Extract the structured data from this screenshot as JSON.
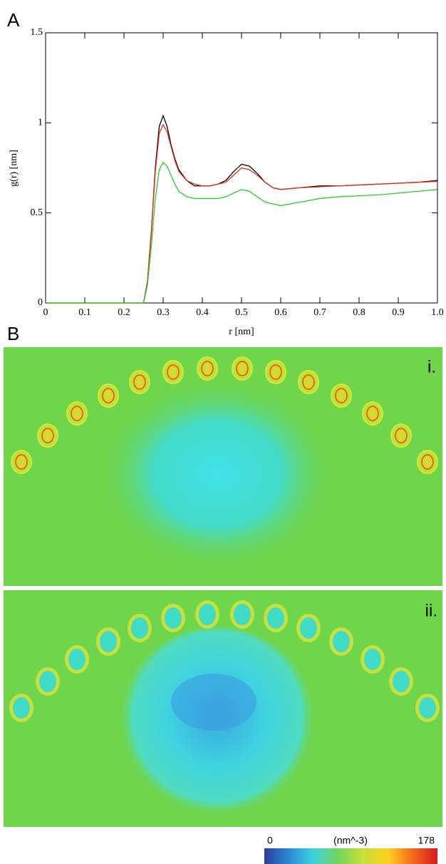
{
  "panel_labels": {
    "a": "A",
    "b": "B",
    "map_i": "i.",
    "map_ii": "ii."
  },
  "chart_data": [
    {
      "type": "line",
      "ylabel": "g(r) [nm]",
      "xlabel": "r [nm]",
      "x": [
        0,
        0.25,
        0.26,
        0.27,
        0.28,
        0.29,
        0.3,
        0.31,
        0.32,
        0.33,
        0.34,
        0.36,
        0.38,
        0.4,
        0.42,
        0.44,
        0.46,
        0.48,
        0.5,
        0.52,
        0.54,
        0.56,
        0.58,
        0.6,
        0.65,
        0.7,
        0.75,
        0.8,
        0.85,
        0.9,
        0.95,
        1.0
      ],
      "series": [
        {
          "color": "#000000",
          "values": [
            0,
            0,
            0.12,
            0.4,
            0.75,
            0.98,
            1.04,
            0.98,
            0.88,
            0.8,
            0.74,
            0.68,
            0.65,
            0.65,
            0.65,
            0.66,
            0.68,
            0.73,
            0.77,
            0.76,
            0.72,
            0.67,
            0.64,
            0.63,
            0.64,
            0.65,
            0.65,
            0.655,
            0.66,
            0.665,
            0.67,
            0.68
          ]
        },
        {
          "color": "#e8301c",
          "values": [
            0,
            0,
            0.12,
            0.4,
            0.73,
            0.94,
            0.99,
            0.95,
            0.87,
            0.79,
            0.73,
            0.68,
            0.66,
            0.65,
            0.65,
            0.66,
            0.67,
            0.71,
            0.75,
            0.74,
            0.71,
            0.67,
            0.64,
            0.63,
            0.64,
            0.645,
            0.65,
            0.655,
            0.66,
            0.665,
            0.67,
            0.675
          ]
        },
        {
          "color": "#2ecc2e",
          "values": [
            0,
            0,
            0.1,
            0.32,
            0.58,
            0.74,
            0.78,
            0.76,
            0.71,
            0.66,
            0.62,
            0.59,
            0.58,
            0.58,
            0.58,
            0.58,
            0.59,
            0.61,
            0.63,
            0.62,
            0.59,
            0.56,
            0.55,
            0.54,
            0.56,
            0.58,
            0.59,
            0.595,
            0.6,
            0.61,
            0.62,
            0.63
          ]
        }
      ],
      "xlim": [
        0,
        1.0
      ],
      "xticks": [
        0,
        0.1,
        0.2,
        0.3,
        0.4,
        0.5,
        0.6,
        0.7,
        0.8,
        0.9,
        {
          "value": 1.0,
          "label": "1.0"
        }
      ],
      "ylim": [
        0,
        1.5
      ],
      "yticks": [
        0,
        0.5,
        1,
        1.5
      ]
    },
    {
      "type": "colorbar",
      "label": "(nm^-3)",
      "clim": [
        0,
        178
      ],
      "ticks": [
        0,
        178
      ],
      "colors": [
        "#2d3c9a",
        "#2a8bd6",
        "#3fd3e0",
        "#73d65a",
        "#c8e03a",
        "#ffd21f",
        "#f56a1c",
        "#d7191c"
      ]
    }
  ]
}
